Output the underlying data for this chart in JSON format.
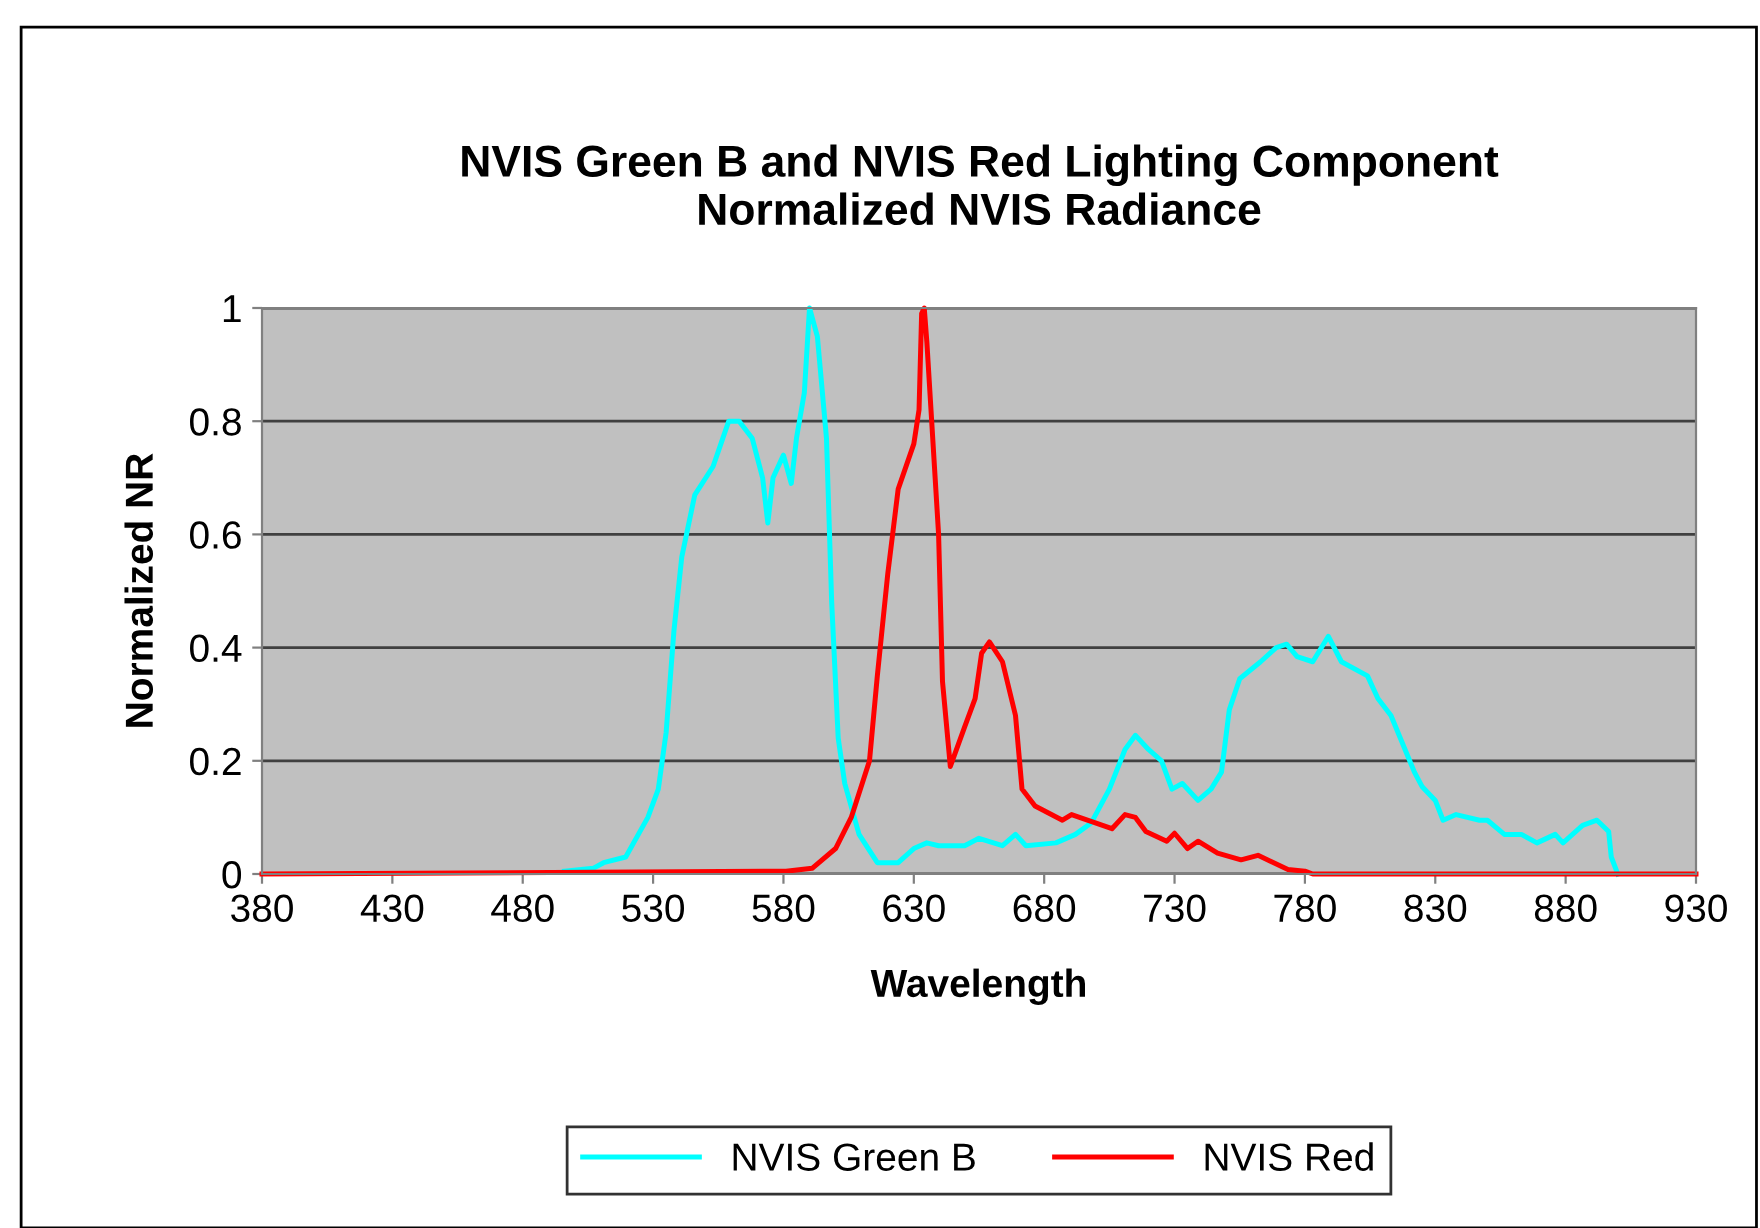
{
  "chart_data": {
    "type": "line",
    "title": "NVIS Green B and NVIS Red Lighting Component\nNormalized NVIS Radiance",
    "xlabel": "Wavelength",
    "ylabel": "Normalized NR",
    "xlim": [
      380,
      930
    ],
    "xticks": [
      380,
      430,
      480,
      530,
      580,
      630,
      680,
      730,
      780,
      830,
      880,
      930
    ],
    "ylim": [
      0,
      1
    ],
    "yticks": [
      0,
      {
        "value": 0.2,
        "label": "0.2"
      },
      {
        "value": 0.4,
        "label": "0.4"
      },
      {
        "value": 0.6,
        "label": "0.6"
      },
      {
        "value": 0.8,
        "label": "0.8"
      },
      1
    ],
    "grid": "y",
    "legend": "bottom",
    "marker": "none",
    "line_style": "solid",
    "series": [
      {
        "name": "NVIS Green B",
        "color": "#00ffff",
        "x": [
          496,
          507,
          511,
          519.5,
          528,
          532,
          535,
          538,
          541,
          546,
          553,
          556,
          559,
          563,
          568,
          572,
          574,
          576,
          580,
          583,
          585,
          588,
          590,
          593,
          596.5,
          598.5,
          601,
          603.5,
          609,
          616,
          624,
          630,
          635,
          639.5,
          644.5,
          649.5,
          655,
          664,
          669,
          673,
          684.5,
          692,
          698,
          705,
          711,
          715,
          720,
          725,
          729,
          733,
          739,
          744,
          748,
          751,
          755,
          763,
          769,
          773,
          777,
          783,
          789,
          794,
          804,
          808,
          813,
          822,
          825,
          830,
          833,
          838,
          847,
          850,
          856.5,
          863,
          869,
          876,
          879,
          886.5,
          892,
          896.5,
          897.5,
          900
        ],
        "values": [
          0.005,
          0.01,
          0.02,
          0.03,
          0.1,
          0.15,
          0.25,
          0.43,
          0.56,
          0.67,
          0.72,
          0.76,
          0.8,
          0.8,
          0.77,
          0.7,
          0.62,
          0.7,
          0.74,
          0.69,
          0.77,
          0.85,
          1.0,
          0.95,
          0.77,
          0.48,
          0.24,
          0.16,
          0.07,
          0.02,
          0.02,
          0.045,
          0.055,
          0.05,
          0.05,
          0.05,
          0.063,
          0.05,
          0.07,
          0.05,
          0.055,
          0.07,
          0.09,
          0.15,
          0.22,
          0.245,
          0.22,
          0.2,
          0.15,
          0.16,
          0.13,
          0.15,
          0.18,
          0.29,
          0.345,
          0.375,
          0.4,
          0.406,
          0.384,
          0.375,
          0.42,
          0.375,
          0.35,
          0.31,
          0.28,
          0.18,
          0.154,
          0.13,
          0.095,
          0.105,
          0.095,
          0.095,
          0.07,
          0.07,
          0.055,
          0.07,
          0.055,
          0.086,
          0.095,
          0.075,
          0.03,
          0.0
        ]
      },
      {
        "name": "NVIS Red",
        "color": "#ff0000",
        "x": [
          380,
          581,
          591,
          600,
          606,
          613,
          616,
          620,
          624,
          630,
          632,
          633,
          634,
          635,
          639.5,
          641,
          644,
          649.5,
          653.5,
          656,
          659,
          664,
          669,
          671.5,
          676.5,
          687,
          690.5,
          706,
          711,
          715,
          719,
          727,
          730,
          735,
          739,
          746.5,
          755.5,
          762,
          773.5,
          780,
          783,
          930
        ],
        "values": [
          0,
          0.005,
          0.01,
          0.045,
          0.1,
          0.2,
          0.35,
          0.53,
          0.68,
          0.76,
          0.82,
          0.99,
          1.0,
          0.94,
          0.6,
          0.34,
          0.19,
          0.26,
          0.31,
          0.39,
          0.41,
          0.375,
          0.28,
          0.15,
          0.12,
          0.095,
          0.105,
          0.08,
          0.105,
          0.1,
          0.075,
          0.058,
          0.072,
          0.045,
          0.058,
          0.037,
          0.025,
          0.033,
          0.008,
          0.005,
          0,
          0
        ]
      }
    ]
  }
}
